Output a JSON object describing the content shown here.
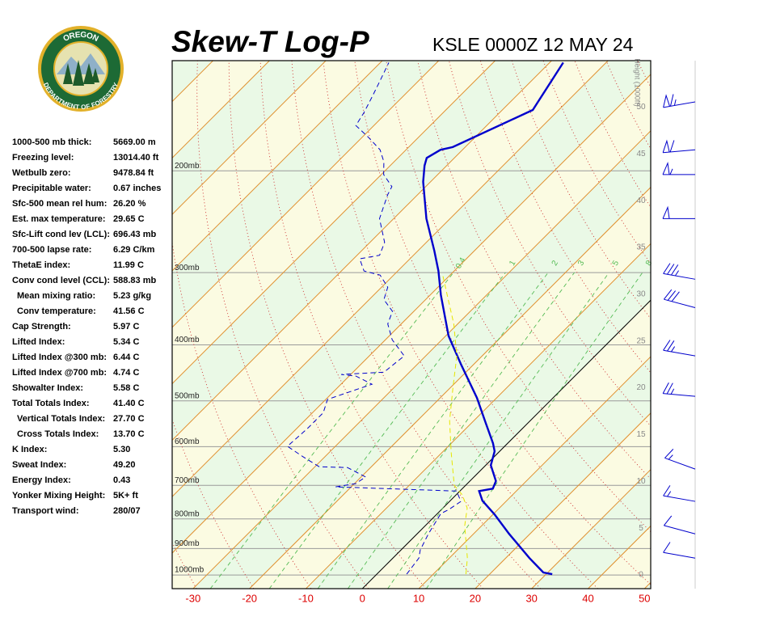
{
  "logo": {
    "top": "OREGON",
    "bottom": "DEPARTMENT OF FORESTRY"
  },
  "stats": {
    "rows": [
      {
        "label": "1000-500 mb thick:",
        "value": "5669.00 m"
      },
      {
        "label": "Freezing level:",
        "value": "13014.40 ft"
      },
      {
        "label": "Wetbulb zero:",
        "value": "9478.84 ft"
      },
      {
        "label": "Precipitable water:",
        "value": "0.67 inches"
      },
      {
        "label": "Sfc-500 mean rel hum:",
        "value": "26.20 %"
      },
      {
        "label": "Est. max temperature:",
        "value": "29.65 C"
      },
      {
        "label": "Sfc-Lift cond lev (LCL):",
        "value": "696.43 mb"
      },
      {
        "label": "700-500 lapse rate:",
        "value": "6.29 C/km"
      },
      {
        "label": "ThetaE index:",
        "value": "11.99 C"
      },
      {
        "label": "Conv cond level (CCL):",
        "value": "588.83 mb",
        "sub": [
          {
            "label": "Mean mixing ratio:",
            "value": "5.23 g/kg"
          },
          {
            "label": "Conv temperature:",
            "value": "41.56 C"
          }
        ]
      },
      {
        "label": "Cap Strength:",
        "value": "5.97 C"
      },
      {
        "label": "Lifted Index:",
        "value": "5.34 C"
      },
      {
        "label": "Lifted Index @300 mb:",
        "value": "6.44 C"
      },
      {
        "label": "Lifted Index @700 mb:",
        "value": "4.74 C"
      },
      {
        "label": "Showalter Index:",
        "value": "5.58 C"
      },
      {
        "label": "Total Totals Index:",
        "value": "41.40 C",
        "sub": [
          {
            "label": "Vertical Totals Index:",
            "value": "27.70 C"
          },
          {
            "label": "Cross Totals Index:",
            "value": "13.70 C"
          }
        ]
      },
      {
        "label": "K Index:",
        "value": "5.30"
      },
      {
        "label": "Sweat Index:",
        "value": "49.20"
      },
      {
        "label": "Energy Index:",
        "value": "0.43"
      },
      {
        "label": "Yonker Mixing Height:",
        "value": "5K+ ft"
      },
      {
        "label": "Transport wind:",
        "value": "280/07"
      }
    ]
  },
  "chart_data": {
    "type": "skew-t",
    "title": "Skew-T Log-P",
    "subtitle": "KSLE 0000Z 12 MAY 24",
    "xlim": [
      -33.7,
      51.1
    ],
    "xticks": [
      -30,
      -20,
      -10,
      0,
      10,
      20,
      30,
      40,
      50
    ],
    "y_scale": "log",
    "ylim": [
      1056,
      129
    ],
    "yticks": [
      {
        "value": 1000,
        "label": "1000mb"
      },
      {
        "value": 900,
        "label": "900mb"
      },
      {
        "value": 800,
        "label": "800mb"
      },
      {
        "value": 700,
        "label": "700mb"
      },
      {
        "value": 600,
        "label": "600mb"
      },
      {
        "value": 500,
        "label": "500mb"
      },
      {
        "value": 400,
        "label": "400mb"
      },
      {
        "value": 300,
        "label": "300mb"
      },
      {
        "value": 200,
        "label": "200mb"
      }
    ],
    "y2label": "Height (1000ft)",
    "y2lim": [
      -1.47,
      54.97
    ],
    "y2ticks": [
      0,
      5,
      10,
      15,
      20,
      25,
      30,
      35,
      40,
      45,
      50
    ],
    "mixing_ratios": [
      0.4,
      1,
      2,
      3,
      5,
      8
    ],
    "series": [
      {
        "color": "#0000cc",
        "dash": false,
        "pressure": [
          997,
          990,
          935,
          849,
          786,
          744,
          716,
          709,
          688,
          646,
          611,
          592,
          544,
          494,
          432,
          386,
          328,
          298,
          275,
          242,
          209,
          196,
          190,
          184,
          182,
          157,
          130
        ],
        "temperature": [
          31.1,
          29.2,
          24.2,
          16.3,
          10.3,
          5.7,
          3.4,
          5.4,
          4.6,
          0.9,
          -0.9,
          -2.6,
          -7.7,
          -13.5,
          -22.3,
          -29.5,
          -38.1,
          -42.8,
          -47.1,
          -54.2,
          -61.3,
          -63.9,
          -64.9,
          -63.9,
          -62.2,
          -54.6,
          -57.6
        ]
      },
      {
        "color": "#0000cc",
        "dash": true,
        "pressure": [
          997,
          935,
          905,
          849,
          783,
          771,
          746,
          716,
          704,
          695,
          677,
          652,
          650,
          625,
          599,
          558,
          524,
          497,
          468,
          453,
          450,
          446,
          429,
          418,
          392,
          368,
          350,
          334,
          318,
          303,
          298,
          284,
          280,
          266,
          242,
          220,
          213,
          203,
          193,
          184,
          175,
          167,
          159,
          149,
          140,
          130
        ],
        "temperature": [
          5.3,
          4.6,
          3.4,
          2.0,
          0.6,
          1.3,
          2.0,
          -0.6,
          -22.8,
          -19.8,
          -19.2,
          -24.1,
          -29.2,
          -33.8,
          -38.5,
          -38.1,
          -38.1,
          -39.7,
          -34.5,
          -38.8,
          -41.7,
          -34.5,
          -34.1,
          -33.8,
          -38.8,
          -42.4,
          -43.8,
          -47.4,
          -48.9,
          -52.4,
          -56.0,
          -58.9,
          -56.0,
          -57.4,
          -62.5,
          -65.3,
          -66.0,
          -69.6,
          -71.8,
          -74.6,
          -78.9,
          -83.2,
          -84.0,
          -85.4,
          -86.8,
          -88.5
        ]
      },
      {
        "color": "#e6e600",
        "dash": true,
        "pressure": [
          997,
          935,
          822,
          766,
          727,
          700,
          615,
          541,
          475,
          418,
          368,
          334,
          303
        ],
        "temperature": [
          15.8,
          13.2,
          7.0,
          4.3,
          1.1,
          -2.0,
          -8.3,
          -14.3,
          -19.5,
          -24.5,
          -30.7,
          -36.0,
          -41.3
        ]
      }
    ],
    "winds": {
      "pressure": [
        152,
        184,
        203,
        242,
        308,
        345,
        418,
        491,
        656,
        746,
        849,
        935
      ],
      "direction": [
        260,
        265,
        270,
        270,
        280,
        285,
        280,
        275,
        290,
        280,
        285,
        280
      ],
      "speed": [
        65,
        60,
        55,
        50,
        35,
        30,
        25,
        25,
        15,
        15,
        10,
        10
      ]
    }
  }
}
